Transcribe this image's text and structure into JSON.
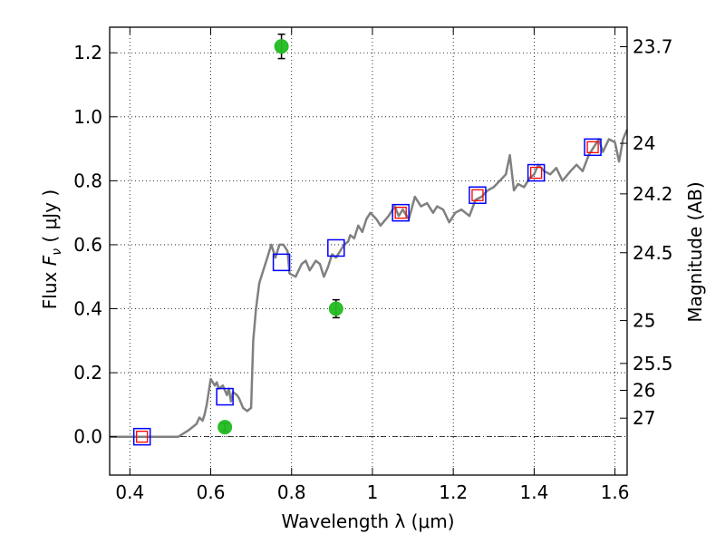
{
  "chart_data": {
    "type": "scatter",
    "title": "",
    "xlabel": "Wavelength  λ (μm)",
    "ylabel_parts": {
      "pre": "Flux  ",
      "var": "F",
      "sub": "ν",
      "post": "  ( μJy )"
    },
    "ylabel_right": "Magnitude (AB)",
    "xlim": [
      0.35,
      1.63
    ],
    "ylim": [
      -0.12,
      1.28
    ],
    "grid": true,
    "x_ticks": [
      {
        "value": 0.4,
        "label": "0.4"
      },
      {
        "value": 0.6,
        "label": "0.6"
      },
      {
        "value": 0.8,
        "label": "0.8"
      },
      {
        "value": 1.0,
        "label": "1"
      },
      {
        "value": 1.2,
        "label": "1.2"
      },
      {
        "value": 1.4,
        "label": "1.4"
      },
      {
        "value": 1.6,
        "label": "1.6"
      }
    ],
    "y_ticks": [
      {
        "value": 0.0,
        "label": "0.0"
      },
      {
        "value": 0.2,
        "label": "0.2"
      },
      {
        "value": 0.4,
        "label": "0.4"
      },
      {
        "value": 0.6,
        "label": "0.6"
      },
      {
        "value": 0.8,
        "label": "0.8"
      },
      {
        "value": 1.0,
        "label": "1.0"
      },
      {
        "value": 1.2,
        "label": "1.2"
      }
    ],
    "right_ticks": [
      {
        "flux": 1.219,
        "label": "23.7"
      },
      {
        "flux": 0.917,
        "label": "24"
      },
      {
        "flux": 0.759,
        "label": "24.2"
      },
      {
        "flux": 0.575,
        "label": "24.5"
      },
      {
        "flux": 0.363,
        "label": "25"
      },
      {
        "flux": 0.229,
        "label": "25.5"
      },
      {
        "flux": 0.145,
        "label": "26"
      },
      {
        "flux": 0.058,
        "label": "27"
      }
    ],
    "colors": {
      "model": "#808080",
      "synthetic": "#0000ff",
      "observed_open": "#ff0000",
      "measured": "#22bb22",
      "errorbar": "#000000",
      "zero_line": "#000000"
    },
    "series": [
      {
        "kind": "model_line",
        "points": [
          [
            0.35,
            0.0
          ],
          [
            0.43,
            0.0
          ],
          [
            0.52,
            0.0
          ],
          [
            0.545,
            0.02
          ],
          [
            0.555,
            0.03
          ],
          [
            0.565,
            0.04
          ],
          [
            0.572,
            0.06
          ],
          [
            0.58,
            0.05
          ],
          [
            0.585,
            0.07
          ],
          [
            0.59,
            0.1
          ],
          [
            0.595,
            0.14
          ],
          [
            0.6,
            0.18
          ],
          [
            0.605,
            0.17
          ],
          [
            0.61,
            0.16
          ],
          [
            0.615,
            0.17
          ],
          [
            0.62,
            0.15
          ],
          [
            0.63,
            0.16
          ],
          [
            0.64,
            0.13
          ],
          [
            0.645,
            0.15
          ],
          [
            0.65,
            0.11
          ],
          [
            0.655,
            0.14
          ],
          [
            0.665,
            0.13
          ],
          [
            0.67,
            0.12
          ],
          [
            0.68,
            0.09
          ],
          [
            0.69,
            0.08
          ],
          [
            0.7,
            0.09
          ],
          [
            0.705,
            0.3
          ],
          [
            0.712,
            0.4
          ],
          [
            0.72,
            0.48
          ],
          [
            0.73,
            0.52
          ],
          [
            0.74,
            0.56
          ],
          [
            0.75,
            0.6
          ],
          [
            0.76,
            0.56
          ],
          [
            0.77,
            0.6
          ],
          [
            0.78,
            0.6
          ],
          [
            0.79,
            0.58
          ],
          [
            0.795,
            0.51
          ],
          [
            0.81,
            0.5
          ],
          [
            0.825,
            0.54
          ],
          [
            0.835,
            0.55
          ],
          [
            0.845,
            0.52
          ],
          [
            0.86,
            0.55
          ],
          [
            0.87,
            0.54
          ],
          [
            0.88,
            0.5
          ],
          [
            0.89,
            0.53
          ],
          [
            0.9,
            0.57
          ],
          [
            0.91,
            0.56
          ],
          [
            0.92,
            0.58
          ],
          [
            0.93,
            0.6
          ],
          [
            0.94,
            0.61
          ],
          [
            0.945,
            0.63
          ],
          [
            0.955,
            0.62
          ],
          [
            0.965,
            0.66
          ],
          [
            0.975,
            0.64
          ],
          [
            0.985,
            0.68
          ],
          [
            0.995,
            0.7
          ],
          [
            1.01,
            0.68
          ],
          [
            1.02,
            0.66
          ],
          [
            1.04,
            0.69
          ],
          [
            1.055,
            0.72
          ],
          [
            1.065,
            0.69
          ],
          [
            1.075,
            0.71
          ],
          [
            1.09,
            0.68
          ],
          [
            1.105,
            0.75
          ],
          [
            1.12,
            0.72
          ],
          [
            1.135,
            0.73
          ],
          [
            1.15,
            0.7
          ],
          [
            1.16,
            0.72
          ],
          [
            1.175,
            0.71
          ],
          [
            1.19,
            0.67
          ],
          [
            1.205,
            0.7
          ],
          [
            1.22,
            0.71
          ],
          [
            1.24,
            0.69
          ],
          [
            1.255,
            0.74
          ],
          [
            1.27,
            0.75
          ],
          [
            1.285,
            0.77
          ],
          [
            1.3,
            0.78
          ],
          [
            1.315,
            0.8
          ],
          [
            1.33,
            0.82
          ],
          [
            1.34,
            0.88
          ],
          [
            1.35,
            0.77
          ],
          [
            1.36,
            0.79
          ],
          [
            1.375,
            0.78
          ],
          [
            1.39,
            0.81
          ],
          [
            1.4,
            0.82
          ],
          [
            1.41,
            0.85
          ],
          [
            1.425,
            0.83
          ],
          [
            1.44,
            0.82
          ],
          [
            1.455,
            0.84
          ],
          [
            1.47,
            0.8
          ],
          [
            1.49,
            0.83
          ],
          [
            1.505,
            0.85
          ],
          [
            1.52,
            0.83
          ],
          [
            1.535,
            0.88
          ],
          [
            1.55,
            0.91
          ],
          [
            1.56,
            0.93
          ],
          [
            1.57,
            0.89
          ],
          [
            1.585,
            0.93
          ],
          [
            1.6,
            0.92
          ],
          [
            1.61,
            0.86
          ],
          [
            1.62,
            0.93
          ],
          [
            1.63,
            0.96
          ]
        ]
      },
      {
        "kind": "synthetic_boxes",
        "points": [
          [
            0.43,
            0.0
          ],
          [
            0.635,
            0.125
          ],
          [
            0.775,
            0.545
          ],
          [
            0.91,
            0.59
          ],
          [
            1.07,
            0.7
          ],
          [
            1.26,
            0.755
          ],
          [
            1.405,
            0.825
          ],
          [
            1.545,
            0.905
          ]
        ]
      },
      {
        "kind": "observed_boxes",
        "points": [
          [
            0.43,
            0.0
          ],
          [
            1.07,
            0.7
          ],
          [
            1.26,
            0.755
          ],
          [
            1.405,
            0.825
          ],
          [
            1.545,
            0.905
          ]
        ]
      },
      {
        "kind": "measured_points",
        "points": [
          {
            "x": 0.635,
            "y": 0.03,
            "err": 0.012
          },
          {
            "x": 0.775,
            "y": 1.22,
            "err": 0.038
          },
          {
            "x": 0.91,
            "y": 0.4,
            "err": 0.028
          }
        ]
      }
    ]
  }
}
